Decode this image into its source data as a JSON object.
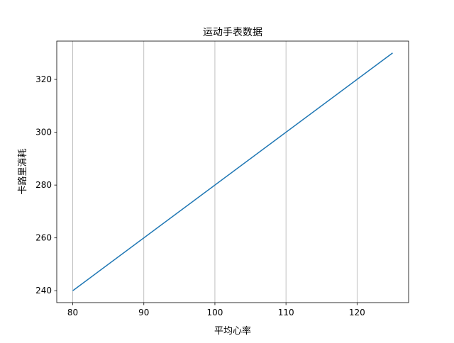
{
  "chart_data": {
    "type": "line",
    "title": "运动手表数据",
    "xlabel": "平均心率",
    "ylabel": "卡路里消耗",
    "xlim": [
      77.75,
      127.25
    ],
    "ylim": [
      235.5,
      334.5
    ],
    "xticks": [
      80,
      90,
      100,
      110,
      120
    ],
    "yticks": [
      240,
      260,
      280,
      300,
      320
    ],
    "grid": "x-axis vertical lines",
    "series": [
      {
        "color": "#1f77b4",
        "x": [
          80,
          125
        ],
        "y": [
          240,
          330
        ]
      }
    ]
  }
}
